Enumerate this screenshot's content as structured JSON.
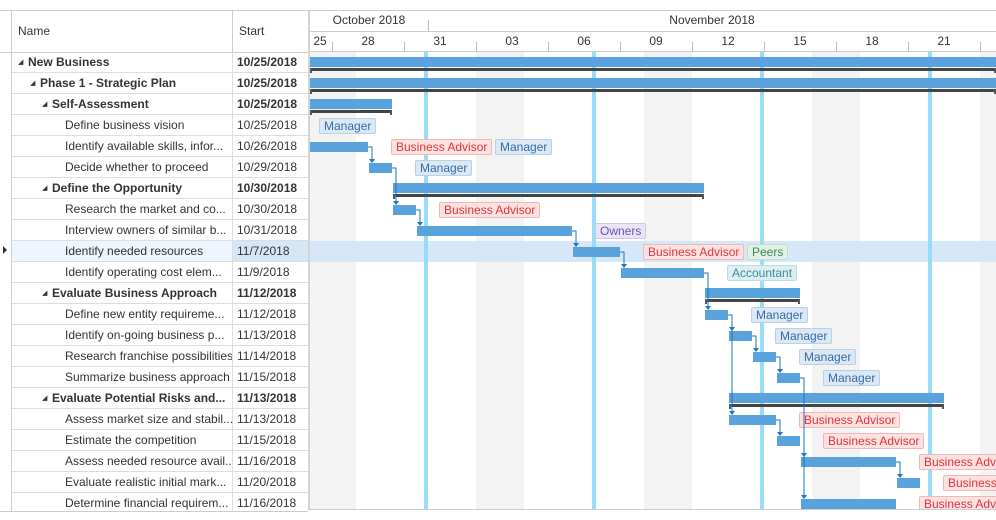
{
  "grid": {
    "columns": {
      "name": "Name",
      "start": "Start"
    }
  },
  "timeline": {
    "months": [
      "October 2018",
      "November 2018"
    ],
    "days": [
      "25",
      "28",
      "31",
      "03",
      "06",
      "09",
      "12",
      "15",
      "18",
      "21"
    ]
  },
  "resource_colors": {
    "Manager": {
      "bg": "#dde8f3",
      "border": "#b8d0e8",
      "text": "#2e6db0"
    },
    "Business Advisor": {
      "bg": "#fde2e2",
      "border": "#f3b6b6",
      "text": "#e0353a"
    },
    "Owners": {
      "bg": "#e9e5f5",
      "border": "#cfc6ea",
      "text": "#6a52b5"
    },
    "Peers": {
      "bg": "#e2f1e7",
      "border": "#bfdfca",
      "text": "#3b8a58"
    },
    "Accountant": {
      "bg": "#ddeef1",
      "border": "#bcdde3",
      "text": "#3a8e9f"
    }
  },
  "bar_color": "#5aa2dc",
  "selected_row": 9,
  "rows": [
    {
      "name": "New Business",
      "start": "10/25/2018",
      "level": 0,
      "summary": true,
      "resources": []
    },
    {
      "name": "Phase 1 - Strategic Plan",
      "start": "10/25/2018",
      "level": 1,
      "summary": true,
      "resources": []
    },
    {
      "name": "Self-Assessment",
      "start": "10/25/2018",
      "level": 2,
      "summary": true,
      "resources": []
    },
    {
      "name": "Define business vision",
      "start": "10/25/2018",
      "level": 3,
      "summary": false,
      "resources": [
        "Manager"
      ]
    },
    {
      "name": "Identify available skills, infor...",
      "start": "10/26/2018",
      "level": 3,
      "summary": false,
      "resources": [
        "Business Advisor",
        "Manager"
      ]
    },
    {
      "name": "Decide whether to proceed",
      "start": "10/29/2018",
      "level": 3,
      "summary": false,
      "resources": [
        "Manager"
      ]
    },
    {
      "name": "Define the Opportunity",
      "start": "10/30/2018",
      "level": 2,
      "summary": true,
      "resources": []
    },
    {
      "name": "Research the market and co...",
      "start": "10/30/2018",
      "level": 3,
      "summary": false,
      "resources": [
        "Business Advisor"
      ]
    },
    {
      "name": "Interview owners of similar b...",
      "start": "10/31/2018",
      "level": 3,
      "summary": false,
      "resources": [
        "Owners"
      ]
    },
    {
      "name": "Identify needed resources",
      "start": "11/7/2018",
      "level": 3,
      "summary": false,
      "resources": [
        "Business Advisor",
        "Peers"
      ]
    },
    {
      "name": "Identify operating cost elem...",
      "start": "11/9/2018",
      "level": 3,
      "summary": false,
      "resources": [
        "Accountant"
      ]
    },
    {
      "name": "Evaluate Business Approach",
      "start": "11/12/2018",
      "level": 2,
      "summary": true,
      "resources": []
    },
    {
      "name": "Define new entity requireme...",
      "start": "11/12/2018",
      "level": 3,
      "summary": false,
      "resources": [
        "Manager"
      ]
    },
    {
      "name": "Identify on-going business p...",
      "start": "11/13/2018",
      "level": 3,
      "summary": false,
      "resources": [
        "Manager"
      ]
    },
    {
      "name": "Research franchise possibilities",
      "start": "11/14/2018",
      "level": 3,
      "summary": false,
      "resources": [
        "Manager"
      ]
    },
    {
      "name": "Summarize business approach",
      "start": "11/15/2018",
      "level": 3,
      "summary": false,
      "resources": [
        "Manager"
      ]
    },
    {
      "name": "Evaluate Potential Risks and...",
      "start": "11/13/2018",
      "level": 2,
      "summary": true,
      "resources": []
    },
    {
      "name": "Assess market size and stabil...",
      "start": "11/13/2018",
      "level": 3,
      "summary": false,
      "resources": [
        "Business Advisor"
      ]
    },
    {
      "name": "Estimate the competition",
      "start": "11/15/2018",
      "level": 3,
      "summary": false,
      "resources": [
        "Business Advisor"
      ]
    },
    {
      "name": "Assess needed resource avail...",
      "start": "11/16/2018",
      "level": 3,
      "summary": false,
      "resources": [
        "Business Advisor"
      ]
    },
    {
      "name": "Evaluate realistic initial mark...",
      "start": "11/20/2018",
      "level": 3,
      "summary": false,
      "resources": [
        "Business Advisor"
      ]
    },
    {
      "name": "Determine financial requirem...",
      "start": "11/16/2018",
      "level": 3,
      "summary": false,
      "resources": [
        "Business Advisor"
      ]
    }
  ]
}
